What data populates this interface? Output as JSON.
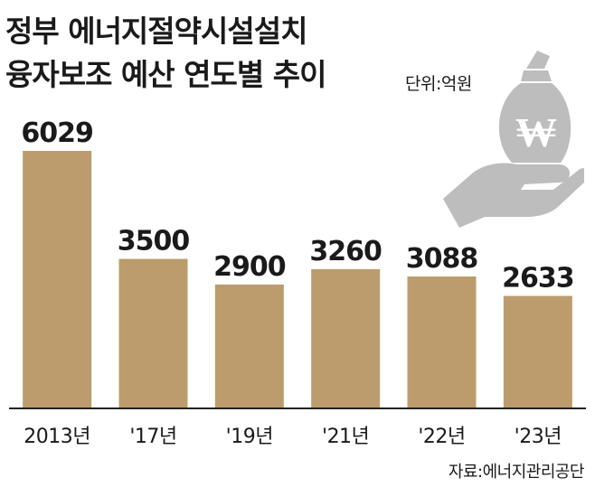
{
  "title_lines": [
    "정부 에너지절약시설설치",
    "융자보조 예산 연도별 추이"
  ],
  "unit_label": "단위:억원",
  "source": "자료:에너지관리공단",
  "icon": "won-money-bag-on-hand-icon",
  "colors": {
    "bar": "#BC9C6C",
    "text": "#1a1a1a",
    "axis": "#222222",
    "icon": "#BDBDBD"
  },
  "chart_data": {
    "type": "bar",
    "categories": [
      "2013년",
      "'17년",
      "'19년",
      "'21년",
      "'22년",
      "'23년"
    ],
    "values": [
      6029,
      3500,
      2900,
      3260,
      3088,
      2633
    ],
    "data_labels": [
      "6029",
      "3500",
      "2900",
      "3260",
      "3088",
      "2633"
    ],
    "title": "정부 에너지절약시설설치 융자보조 예산 연도별 추이",
    "ylabel": "",
    "xlabel": "",
    "ylim": [
      0,
      6600
    ],
    "grid": false,
    "legend": "none"
  }
}
